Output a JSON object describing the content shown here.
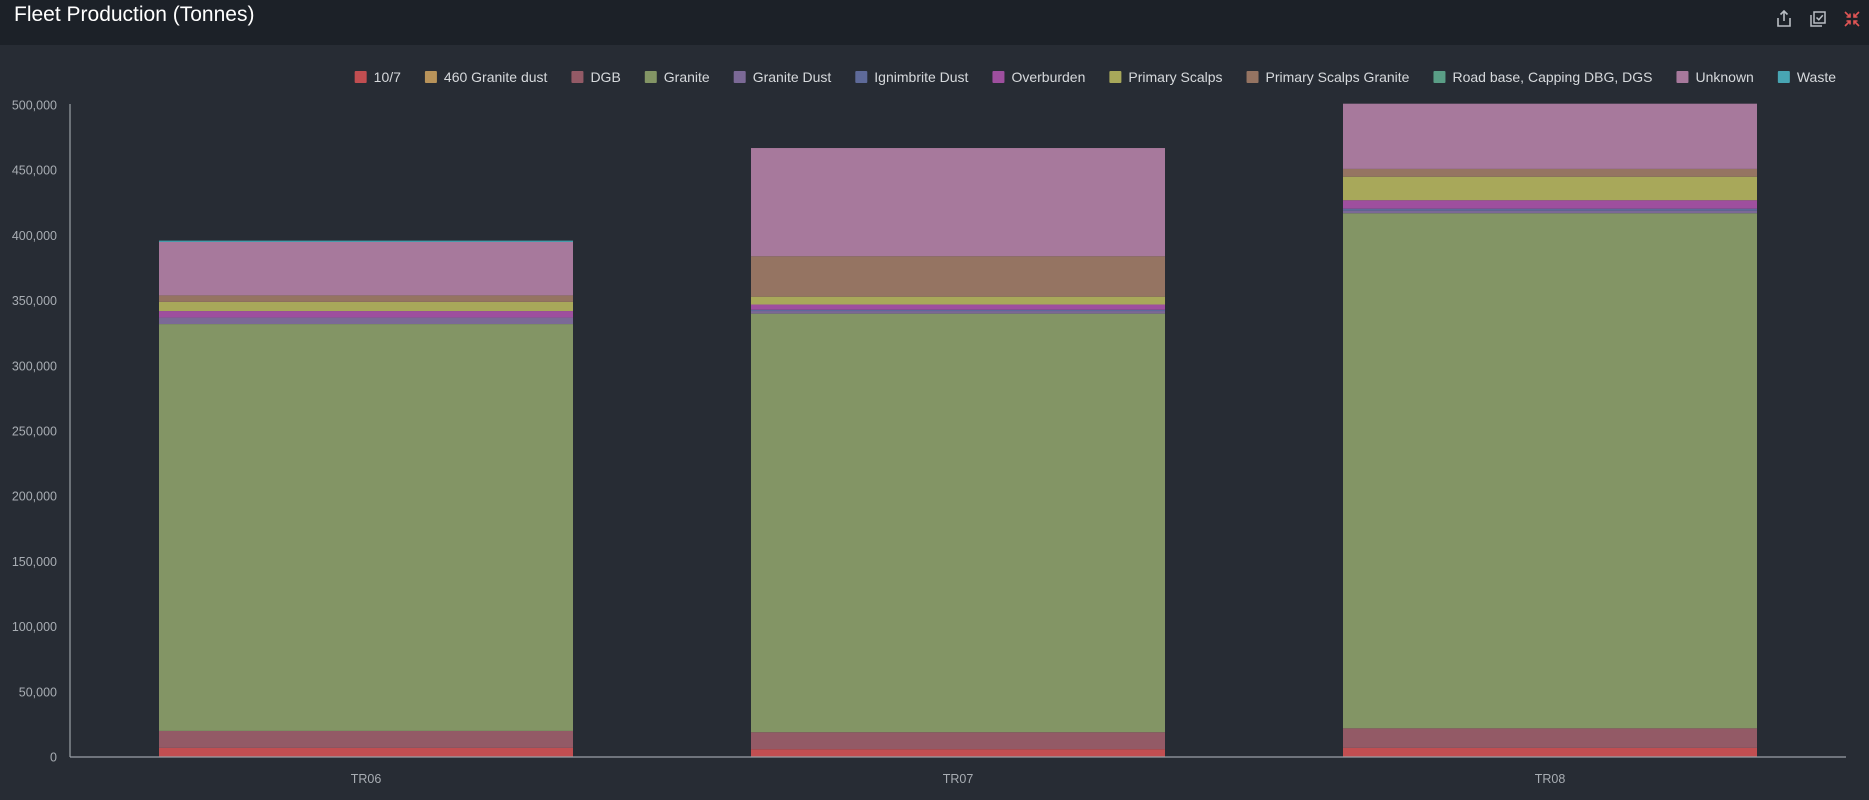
{
  "header": {
    "title": "Fleet Production (Tonnes)",
    "tools": [
      {
        "name": "export-icon"
      },
      {
        "name": "select-icon"
      },
      {
        "name": "minimize-icon"
      }
    ]
  },
  "colors": {
    "background": "#272c34",
    "header": "#1c2128",
    "axis": "#9aa0a6",
    "tick_text": "#a8adb3",
    "legend_text": "#d6d9dc",
    "minimize_accent": "#e05555"
  },
  "chart_data": {
    "type": "bar",
    "stacked": true,
    "categories": [
      "TR06",
      "TR07",
      "TR08"
    ],
    "ylim": [
      0,
      500000
    ],
    "yticks": [
      0,
      50000,
      100000,
      150000,
      200000,
      250000,
      300000,
      350000,
      400000,
      450000,
      500000
    ],
    "ytick_labels": [
      "0",
      "50,000",
      "100,000",
      "150,000",
      "200,000",
      "250,000",
      "300,000",
      "350,000",
      "400,000",
      "450,000",
      "500,000"
    ],
    "legend_position": "top-right",
    "grid": false,
    "series": [
      {
        "name": "10/7",
        "color": "#c14e51",
        "values": [
          7000,
          6000,
          7000
        ]
      },
      {
        "name": "460 Granite dust",
        "color": "#b8935a",
        "values": [
          0,
          0,
          0
        ]
      },
      {
        "name": "DGB",
        "color": "#935a66",
        "values": [
          13000,
          13000,
          15000
        ]
      },
      {
        "name": "Granite",
        "color": "#839565",
        "values": [
          312000,
          321000,
          395000
        ]
      },
      {
        "name": "Granite Dust",
        "color": "#7b6996",
        "values": [
          5000,
          2000,
          2000
        ]
      },
      {
        "name": "Ignimbrite Dust",
        "color": "#5e6a99",
        "values": [
          0,
          1000,
          1500
        ]
      },
      {
        "name": "Overburden",
        "color": "#9e4f9e",
        "values": [
          5000,
          4000,
          6500
        ]
      },
      {
        "name": "Primary Scalps",
        "color": "#a8a85a",
        "values": [
          7000,
          6000,
          18000
        ]
      },
      {
        "name": "Primary Scalps Granite",
        "color": "#957462",
        "values": [
          5000,
          31000,
          6000
        ]
      },
      {
        "name": "Road base, Capping DBG, DGS",
        "color": "#5a9e86",
        "values": [
          0,
          0,
          0
        ]
      },
      {
        "name": "Unknown",
        "color": "#a7799c",
        "values": [
          41000,
          83000,
          50000
        ]
      },
      {
        "name": "Waste",
        "color": "#48a5b3",
        "values": [
          1000,
          0,
          0
        ]
      }
    ]
  }
}
